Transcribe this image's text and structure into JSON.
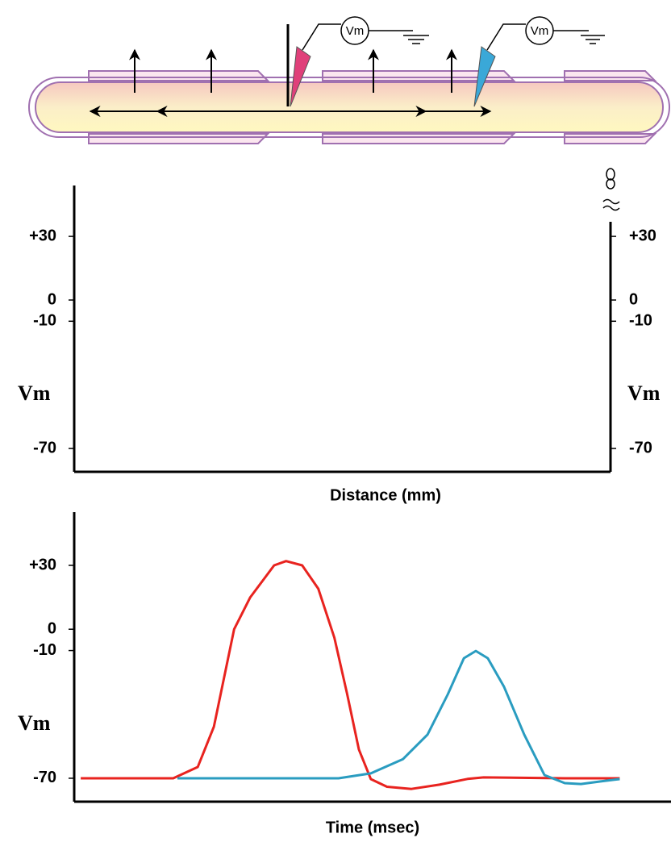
{
  "diagram": {
    "voltmeter_labels": [
      "Vm",
      "Vm"
    ]
  },
  "chart_data": [
    {
      "type": "line",
      "xlabel": "Distance (mm)",
      "ylabel": "Vm",
      "y2label": "Vm",
      "ylim": [
        -81,
        54
      ],
      "yticks": [
        {
          "value": 30,
          "label": "+30"
        },
        0,
        -10,
        -70
      ],
      "y2lim": [
        -81,
        54
      ],
      "y2ticks": [
        {
          "value": 30,
          "label": "+30"
        },
        0,
        -10,
        -70
      ],
      "series": []
    },
    {
      "type": "line",
      "xlabel": "Time (msec)",
      "ylabel": "Vm",
      "xlim": [
        0,
        100
      ],
      "ylim": [
        -81,
        55
      ],
      "yticks": [
        {
          "value": 30,
          "label": "+30"
        },
        0,
        -10,
        -70
      ],
      "series": [
        {
          "color": "#e8231f",
          "x": [
            1.1,
            16.6,
            20.7,
            23.4,
            26.8,
            29.5,
            33.5,
            35.5,
            38.2,
            40.9,
            43.6,
            45.7,
            47.7,
            49.7,
            52.4,
            56.5,
            61.2,
            65.9,
            68.6,
            82.2,
            91.4
          ],
          "values": [
            -70,
            -70,
            -64.7,
            -45.8,
            0,
            15,
            30,
            32,
            30,
            19,
            -4,
            -30,
            -56.5,
            -70.4,
            -74,
            -75,
            -73,
            -70.3,
            -69.6,
            -70,
            -70
          ]
        },
        {
          "color": "#2a9cc0",
          "x": [
            17.3,
            44.3,
            49.7,
            55.1,
            59.2,
            62.6,
            65.3,
            67.3,
            69.3,
            72.0,
            75.4,
            78.8,
            82.2,
            84.9,
            88.2,
            91.4
          ],
          "values": [
            -70,
            -70,
            -67.7,
            -61,
            -49.5,
            -30.6,
            -13.6,
            -10.2,
            -13.6,
            -26.9,
            -49.5,
            -68.5,
            -72.3,
            -72.7,
            -71.5,
            -70.4
          ]
        }
      ]
    }
  ]
}
